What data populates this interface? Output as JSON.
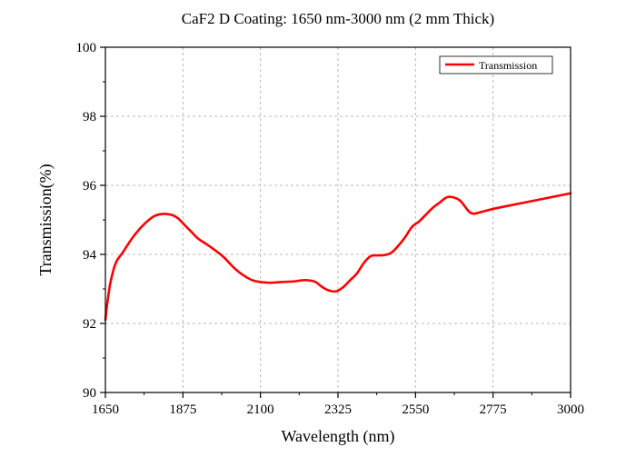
{
  "chart_data": {
    "type": "line",
    "title": "CaF2 D Coating: 1650 nm-3000 nm (2 mm Thick)",
    "xlabel": "Wavelength (nm)",
    "ylabel": "Transmission(%)",
    "xlim": [
      1650,
      3000
    ],
    "ylim": [
      90,
      100
    ],
    "xticks": [
      1650,
      1875,
      2100,
      2325,
      2550,
      2775,
      3000
    ],
    "yticks": [
      90,
      92,
      94,
      96,
      98,
      100
    ],
    "grid": true,
    "legend_position": "top-right",
    "series": [
      {
        "name": "Transmission",
        "color": "#ff0000",
        "x": [
          1650,
          1655,
          1665,
          1680,
          1700,
          1730,
          1760,
          1790,
          1815,
          1840,
          1860,
          1880,
          1900,
          1920,
          1950,
          1990,
          2030,
          2070,
          2100,
          2130,
          2160,
          2200,
          2220,
          2240,
          2260,
          2280,
          2300,
          2320,
          2340,
          2360,
          2380,
          2400,
          2420,
          2440,
          2460,
          2480,
          2500,
          2520,
          2540,
          2560,
          2580,
          2600,
          2620,
          2640,
          2660,
          2680,
          2700,
          2710,
          2720,
          2730,
          2760,
          2800,
          2850,
          2900,
          2950,
          3000
        ],
        "y": [
          92.1,
          92.55,
          93.2,
          93.75,
          94.05,
          94.5,
          94.85,
          95.1,
          95.17,
          95.15,
          95.05,
          94.85,
          94.65,
          94.45,
          94.25,
          93.95,
          93.55,
          93.28,
          93.2,
          93.18,
          93.2,
          93.22,
          93.25,
          93.25,
          93.2,
          93.05,
          92.95,
          92.93,
          93.05,
          93.25,
          93.45,
          93.75,
          93.95,
          93.97,
          93.98,
          94.05,
          94.25,
          94.5,
          94.8,
          94.95,
          95.15,
          95.35,
          95.5,
          95.65,
          95.65,
          95.55,
          95.3,
          95.2,
          95.18,
          95.2,
          95.28,
          95.37,
          95.47,
          95.57,
          95.67,
          95.77
        ]
      }
    ]
  }
}
